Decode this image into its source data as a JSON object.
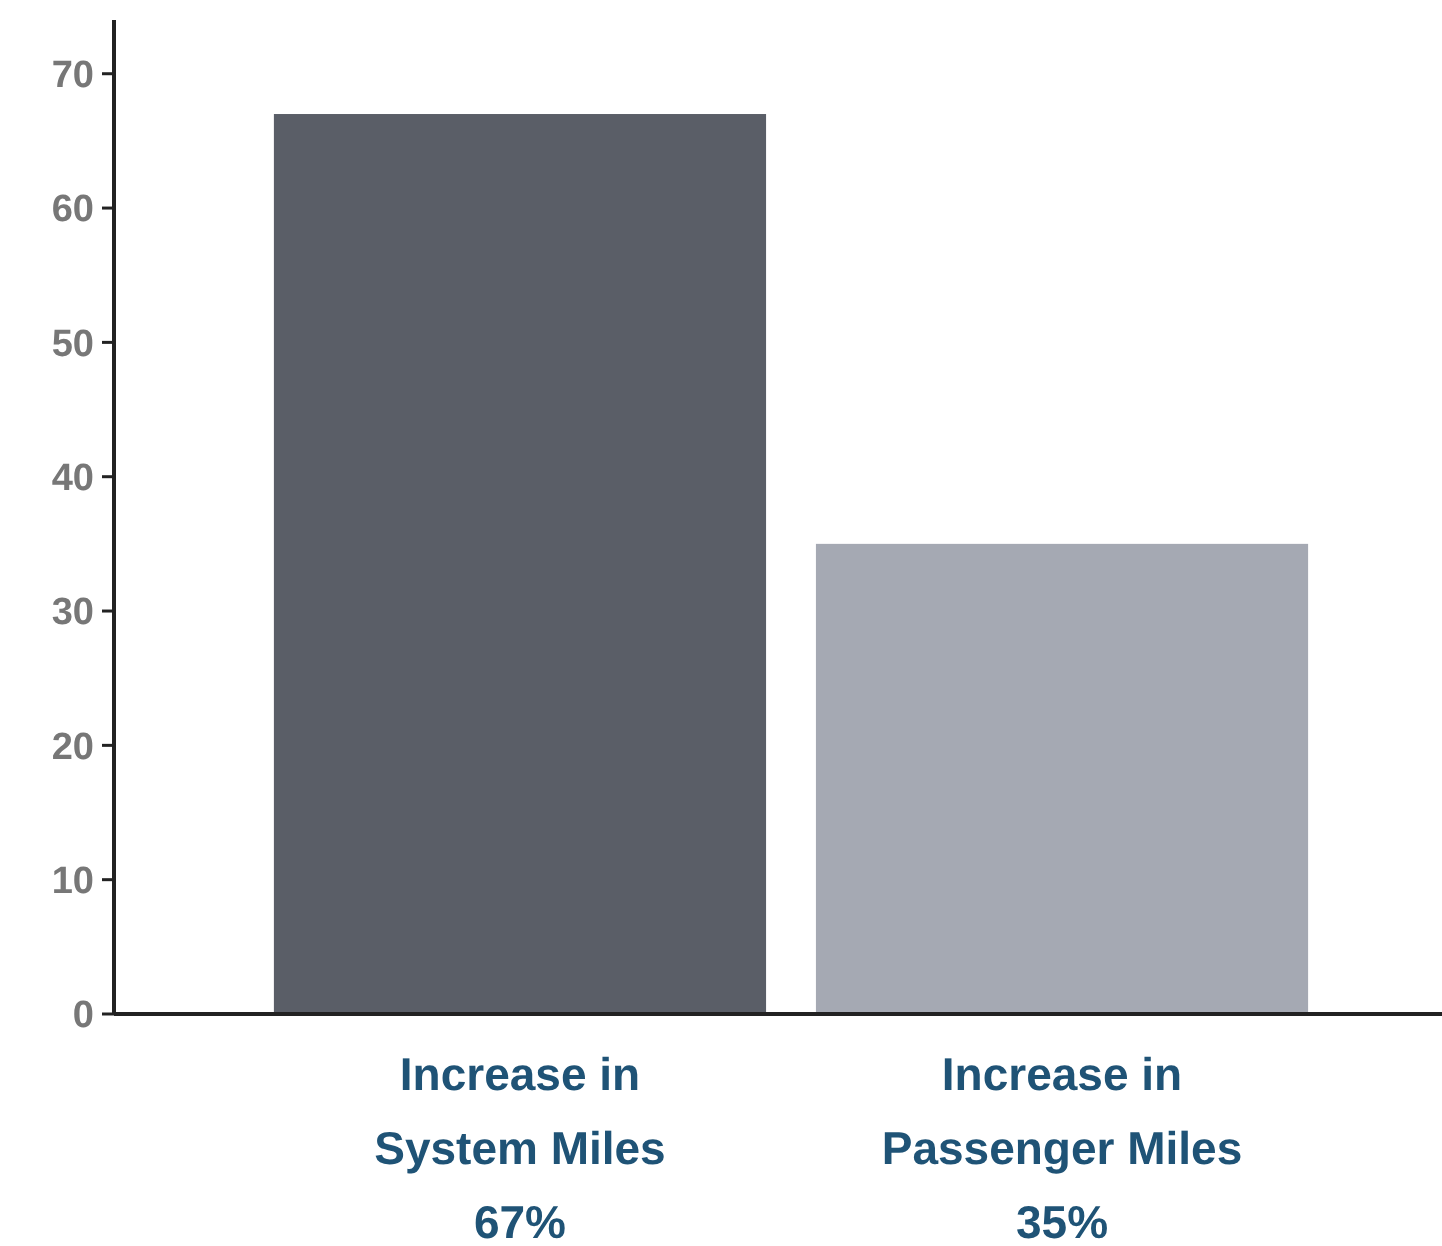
{
  "chart_data": {
    "type": "bar",
    "categories": [
      "Increase in\nSystem Miles",
      "Increase in\nPassenger Miles"
    ],
    "values": [
      67,
      35
    ],
    "colors": [
      "#5a5e67",
      "#a5a9b3"
    ],
    "value_labels": [
      "67%",
      "35%"
    ],
    "ylim": [
      0,
      74
    ],
    "yticks": [
      0,
      10,
      20,
      30,
      40,
      50,
      60,
      70
    ],
    "grid": false
  }
}
